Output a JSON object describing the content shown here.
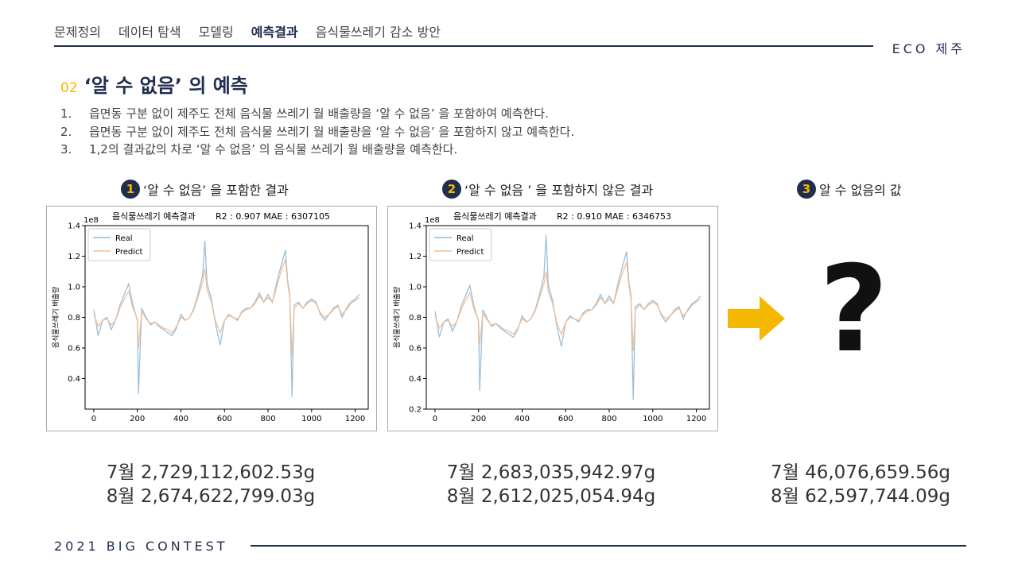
{
  "nav": {
    "items": [
      "문제정의",
      "데이터 탐색",
      "모델링",
      "예측결과",
      "음식물쓰레기 감소 방안"
    ],
    "active_index": 3,
    "brand": "ECO 제주"
  },
  "section": {
    "number": "02",
    "title": "‘알 수 없음’ 의 예측",
    "steps": [
      {
        "n": "1.",
        "text": "읍면동 구분 없이 제주도 전체 음식물 쓰레기 월 배출량을 ‘알 수 없음’ 을 포함하여 예측한다."
      },
      {
        "n": "2.",
        "text": "읍면동 구분 없이 제주도 전체 음식물 쓰레기 월 배출량을 ‘알 수 없음’ 을 포함하지 않고 예측한다."
      },
      {
        "n": "3.",
        "text": "1,2의 결과값의 차로 ‘알 수 없음’ 의 음식물 쓰레기 월 배출량을 예측한다."
      }
    ]
  },
  "captions": [
    {
      "badge": "1",
      "text": "‘알 수 없음’ 을 포함한 결과"
    },
    {
      "badge": "2",
      "text": "‘알 수 없음 ’ 을 포함하지 않은 결과"
    },
    {
      "badge": "3",
      "text": "알 수 없음의 값"
    }
  ],
  "unknown_symbol": "?",
  "results": [
    {
      "july": "7월 2,729,112,602.53g",
      "august": "8월 2,674,622,799.03g"
    },
    {
      "july": "7월 2,683,035,942.97g",
      "august": "8월 2,612,025,054.94g"
    },
    {
      "july": "7월 46,076,659.56g",
      "august": "8월 62,597,744.09g"
    }
  ],
  "footer": "2021 BIG CONTEST",
  "colors": {
    "navy": "#1f2d4f",
    "accent": "#f5b800",
    "real": "#8fb9d9",
    "predict": "#f3bd8f"
  },
  "chart_data": [
    {
      "type": "line",
      "title": "음식물쓰레기 예측결과",
      "metrics": "R2 : 0.907    MAE : 6307105",
      "ylabel": "음식물쓰레기 배출량",
      "xlabel": "",
      "y_multiplier_label": "1e8",
      "xlim": [
        -40,
        1260
      ],
      "ylim": [
        0.2,
        1.4
      ],
      "x_ticks": [
        0,
        200,
        400,
        600,
        800,
        1000,
        1200
      ],
      "y_ticks": [
        0.4,
        0.6,
        0.8,
        1.0,
        1.2,
        1.4
      ],
      "legend": "upper-left",
      "series": [
        {
          "name": "Real",
          "color": "#8fb9d9",
          "x": [
            0,
            20,
            40,
            60,
            80,
            100,
            120,
            140,
            160,
            180,
            200,
            205,
            220,
            240,
            260,
            280,
            300,
            320,
            340,
            360,
            380,
            400,
            420,
            440,
            460,
            480,
            500,
            510,
            520,
            540,
            560,
            580,
            600,
            620,
            640,
            660,
            680,
            700,
            720,
            740,
            760,
            780,
            800,
            820,
            840,
            860,
            880,
            890,
            900,
            910,
            920,
            940,
            960,
            980,
            1000,
            1020,
            1040,
            1060,
            1080,
            1100,
            1120,
            1140,
            1160,
            1180,
            1200,
            1220
          ],
          "y": [
            0.85,
            0.68,
            0.78,
            0.8,
            0.72,
            0.78,
            0.88,
            0.95,
            1.02,
            0.88,
            0.78,
            0.3,
            0.86,
            0.8,
            0.75,
            0.77,
            0.74,
            0.72,
            0.7,
            0.68,
            0.73,
            0.82,
            0.78,
            0.8,
            0.86,
            0.96,
            1.08,
            1.3,
            1.02,
            0.92,
            0.75,
            0.62,
            0.78,
            0.82,
            0.8,
            0.78,
            0.84,
            0.86,
            0.86,
            0.9,
            0.96,
            0.9,
            0.95,
            0.9,
            1.03,
            1.14,
            1.24,
            1.04,
            0.95,
            0.28,
            0.88,
            0.9,
            0.86,
            0.9,
            0.92,
            0.9,
            0.82,
            0.78,
            0.82,
            0.86,
            0.88,
            0.8,
            0.86,
            0.9,
            0.92,
            0.95
          ]
        },
        {
          "name": "Predict",
          "color": "#f3bd8f",
          "x": [
            0,
            20,
            40,
            60,
            80,
            100,
            120,
            140,
            160,
            180,
            200,
            205,
            220,
            240,
            260,
            280,
            300,
            320,
            340,
            360,
            380,
            400,
            420,
            440,
            460,
            480,
            500,
            510,
            520,
            540,
            560,
            580,
            600,
            620,
            640,
            660,
            680,
            700,
            720,
            740,
            760,
            780,
            800,
            820,
            840,
            860,
            880,
            890,
            900,
            910,
            920,
            940,
            960,
            980,
            1000,
            1020,
            1040,
            1060,
            1080,
            1100,
            1120,
            1140,
            1160,
            1180,
            1200,
            1220
          ],
          "y": [
            0.82,
            0.74,
            0.78,
            0.79,
            0.75,
            0.78,
            0.86,
            0.92,
            0.97,
            0.86,
            0.79,
            0.6,
            0.84,
            0.79,
            0.76,
            0.77,
            0.75,
            0.73,
            0.72,
            0.7,
            0.74,
            0.8,
            0.78,
            0.8,
            0.85,
            0.94,
            1.03,
            1.12,
            0.98,
            0.9,
            0.77,
            0.7,
            0.78,
            0.81,
            0.8,
            0.79,
            0.83,
            0.85,
            0.86,
            0.89,
            0.94,
            0.9,
            0.93,
            0.9,
            1.0,
            1.1,
            1.18,
            1.02,
            0.93,
            0.55,
            0.86,
            0.89,
            0.86,
            0.89,
            0.91,
            0.89,
            0.83,
            0.8,
            0.82,
            0.85,
            0.87,
            0.82,
            0.85,
            0.89,
            0.91,
            0.93
          ]
        }
      ]
    },
    {
      "type": "line",
      "title": "음식물쓰레기 예측결과",
      "metrics": "R2 : 0.910    MAE : 6346753",
      "ylabel": "음식물쓰레기 배출량",
      "xlabel": "",
      "y_multiplier_label": "1e8",
      "xlim": [
        -40,
        1260
      ],
      "ylim": [
        0.2,
        1.4
      ],
      "x_ticks": [
        0,
        200,
        400,
        600,
        800,
        1000,
        1200
      ],
      "y_ticks": [
        0.2,
        0.4,
        0.6,
        0.8,
        1.0,
        1.2,
        1.4
      ],
      "legend": "upper-left",
      "series": [
        {
          "name": "Real",
          "color": "#8fb9d9",
          "x": [
            0,
            20,
            40,
            60,
            80,
            100,
            120,
            140,
            160,
            180,
            200,
            205,
            220,
            240,
            260,
            280,
            300,
            320,
            340,
            360,
            380,
            400,
            420,
            440,
            460,
            480,
            500,
            510,
            520,
            540,
            560,
            580,
            600,
            620,
            640,
            660,
            680,
            700,
            720,
            740,
            760,
            780,
            800,
            820,
            840,
            860,
            880,
            890,
            900,
            910,
            920,
            940,
            960,
            980,
            1000,
            1020,
            1040,
            1060,
            1080,
            1100,
            1120,
            1140,
            1160,
            1180,
            1200,
            1220
          ],
          "y": [
            0.84,
            0.67,
            0.77,
            0.79,
            0.71,
            0.77,
            0.87,
            0.94,
            1.01,
            0.87,
            0.77,
            0.32,
            0.85,
            0.79,
            0.74,
            0.76,
            0.73,
            0.71,
            0.69,
            0.67,
            0.72,
            0.81,
            0.77,
            0.79,
            0.85,
            0.95,
            1.07,
            1.34,
            1.01,
            0.91,
            0.74,
            0.61,
            0.77,
            0.81,
            0.79,
            0.77,
            0.83,
            0.85,
            0.85,
            0.89,
            0.95,
            0.89,
            0.94,
            0.89,
            1.02,
            1.13,
            1.23,
            1.03,
            0.94,
            0.26,
            0.87,
            0.89,
            0.85,
            0.89,
            0.91,
            0.89,
            0.81,
            0.77,
            0.81,
            0.85,
            0.87,
            0.79,
            0.85,
            0.89,
            0.91,
            0.94
          ]
        },
        {
          "name": "Predict",
          "color": "#f3bd8f",
          "x": [
            0,
            20,
            40,
            60,
            80,
            100,
            120,
            140,
            160,
            180,
            200,
            205,
            220,
            240,
            260,
            280,
            300,
            320,
            340,
            360,
            380,
            400,
            420,
            440,
            460,
            480,
            500,
            510,
            520,
            540,
            560,
            580,
            600,
            620,
            640,
            660,
            680,
            700,
            720,
            740,
            760,
            780,
            800,
            820,
            840,
            860,
            880,
            890,
            900,
            910,
            920,
            940,
            960,
            980,
            1000,
            1020,
            1040,
            1060,
            1080,
            1100,
            1120,
            1140,
            1160,
            1180,
            1200,
            1220
          ],
          "y": [
            0.81,
            0.73,
            0.77,
            0.78,
            0.74,
            0.77,
            0.85,
            0.91,
            0.96,
            0.85,
            0.78,
            0.62,
            0.83,
            0.78,
            0.75,
            0.76,
            0.74,
            0.72,
            0.71,
            0.69,
            0.73,
            0.79,
            0.77,
            0.79,
            0.84,
            0.93,
            1.02,
            1.1,
            0.97,
            0.89,
            0.76,
            0.69,
            0.77,
            0.8,
            0.79,
            0.78,
            0.82,
            0.84,
            0.85,
            0.88,
            0.93,
            0.89,
            0.92,
            0.89,
            0.99,
            1.09,
            1.16,
            1.01,
            0.92,
            0.58,
            0.85,
            0.88,
            0.85,
            0.88,
            0.9,
            0.88,
            0.82,
            0.79,
            0.81,
            0.84,
            0.86,
            0.81,
            0.84,
            0.88,
            0.9,
            0.92
          ]
        }
      ]
    }
  ]
}
